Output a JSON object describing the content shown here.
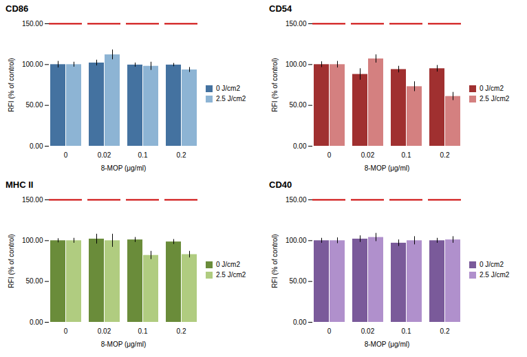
{
  "chart_data": [
    {
      "type": "bar",
      "title": "CD86",
      "categories": [
        "0",
        "0.02",
        "0.1",
        "0.2"
      ],
      "series": [
        {
          "name": "0 J/cm2",
          "color": "#4472a0",
          "values": [
            100.0,
            102.0,
            99.5,
            99.5
          ],
          "errors": [
            4.0,
            3.5,
            2.5,
            2.0
          ]
        },
        {
          "name": "2.5 J/cm2",
          "color": "#8db4d4",
          "values": [
            100.0,
            112.0,
            98.0,
            93.5
          ],
          "errors": [
            3.0,
            6.0,
            5.0,
            3.0
          ]
        }
      ],
      "xlabel": "8-MOP (μg/ml)",
      "ylabel": "RFI (% of control)",
      "ylim": [
        0,
        150
      ],
      "yticks": [
        {
          "value": 0,
          "label": "0.00"
        },
        {
          "value": 50,
          "label": "50.00"
        },
        {
          "value": 100,
          "label": "100.00"
        },
        {
          "value": 150,
          "label": "150.00"
        }
      ],
      "reference_line": {
        "value": 150,
        "color": "#cc0000"
      },
      "grid": false,
      "legend": "right"
    },
    {
      "type": "bar",
      "title": "CD54",
      "categories": [
        "0",
        "0.02",
        "0.1",
        "0.2"
      ],
      "series": [
        {
          "name": "0 J/cm2",
          "color": "#a03030",
          "values": [
            100.0,
            88.0,
            94.0,
            95.0
          ],
          "errors": [
            3.5,
            7.0,
            4.0,
            4.0
          ]
        },
        {
          "name": "2.5 J/cm2",
          "color": "#d48080",
          "values": [
            100.0,
            107.0,
            73.0,
            61.0
          ],
          "errors": [
            4.0,
            5.0,
            6.0,
            5.0
          ]
        }
      ],
      "xlabel": "8-MOP (μg/ml)",
      "ylabel": "RFI (% of control)",
      "ylim": [
        0,
        150
      ],
      "yticks": [
        {
          "value": 0,
          "label": "0.00"
        },
        {
          "value": 50,
          "label": "50.00"
        },
        {
          "value": 100,
          "label": "100.00"
        },
        {
          "value": 150,
          "label": "150.00"
        }
      ],
      "reference_line": {
        "value": 150,
        "color": "#cc0000"
      },
      "grid": false,
      "legend": "right"
    },
    {
      "type": "bar",
      "title": "MHC  II",
      "categories": [
        "0",
        "0.02",
        "0.1",
        "0.2"
      ],
      "series": [
        {
          "name": "0 J/cm2",
          "color": "#6a8c3a",
          "values": [
            100.0,
            102.0,
            101.0,
            98.5
          ],
          "errors": [
            2.5,
            6.0,
            3.0,
            3.0
          ]
        },
        {
          "name": "2.5 J/cm2",
          "color": "#b0cc80",
          "values": [
            100.0,
            100.0,
            82.0,
            83.0
          ],
          "errors": [
            3.0,
            8.0,
            5.0,
            4.0
          ]
        }
      ],
      "xlabel": "8-MOP (μg/ml)",
      "ylabel": "RFI (% of control)",
      "ylim": [
        0,
        150
      ],
      "yticks": [
        {
          "value": 0,
          "label": "0.00"
        },
        {
          "value": 50,
          "label": "50.00"
        },
        {
          "value": 100,
          "label": "100.00"
        },
        {
          "value": 150,
          "label": "150.00"
        }
      ],
      "reference_line": {
        "value": 150,
        "color": "#cc0000"
      },
      "grid": false,
      "legend": "right"
    },
    {
      "type": "bar",
      "title": "CD40",
      "categories": [
        "0",
        "0.02",
        "0.1",
        "0.2"
      ],
      "series": [
        {
          "name": "0 J/cm2",
          "color": "#7a5a9a",
          "values": [
            100.0,
            102.0,
            97.0,
            100.0
          ],
          "errors": [
            3.0,
            4.0,
            4.0,
            3.0
          ]
        },
        {
          "name": "2.5 J/cm2",
          "color": "#b090cc",
          "values": [
            100.0,
            104.0,
            100.0,
            101.0
          ],
          "errors": [
            3.5,
            5.0,
            5.0,
            4.0
          ]
        }
      ],
      "xlabel": "8-MOP (μg/ml)",
      "ylabel": "RFI (% of control)",
      "ylim": [
        0,
        150
      ],
      "yticks": [
        {
          "value": 0,
          "label": "0.00"
        },
        {
          "value": 50,
          "label": "50.00"
        },
        {
          "value": 100,
          "label": "100.00"
        },
        {
          "value": 150,
          "label": "150.00"
        }
      ],
      "reference_line": {
        "value": 150,
        "color": "#cc0000"
      },
      "grid": false,
      "legend": "right"
    }
  ]
}
